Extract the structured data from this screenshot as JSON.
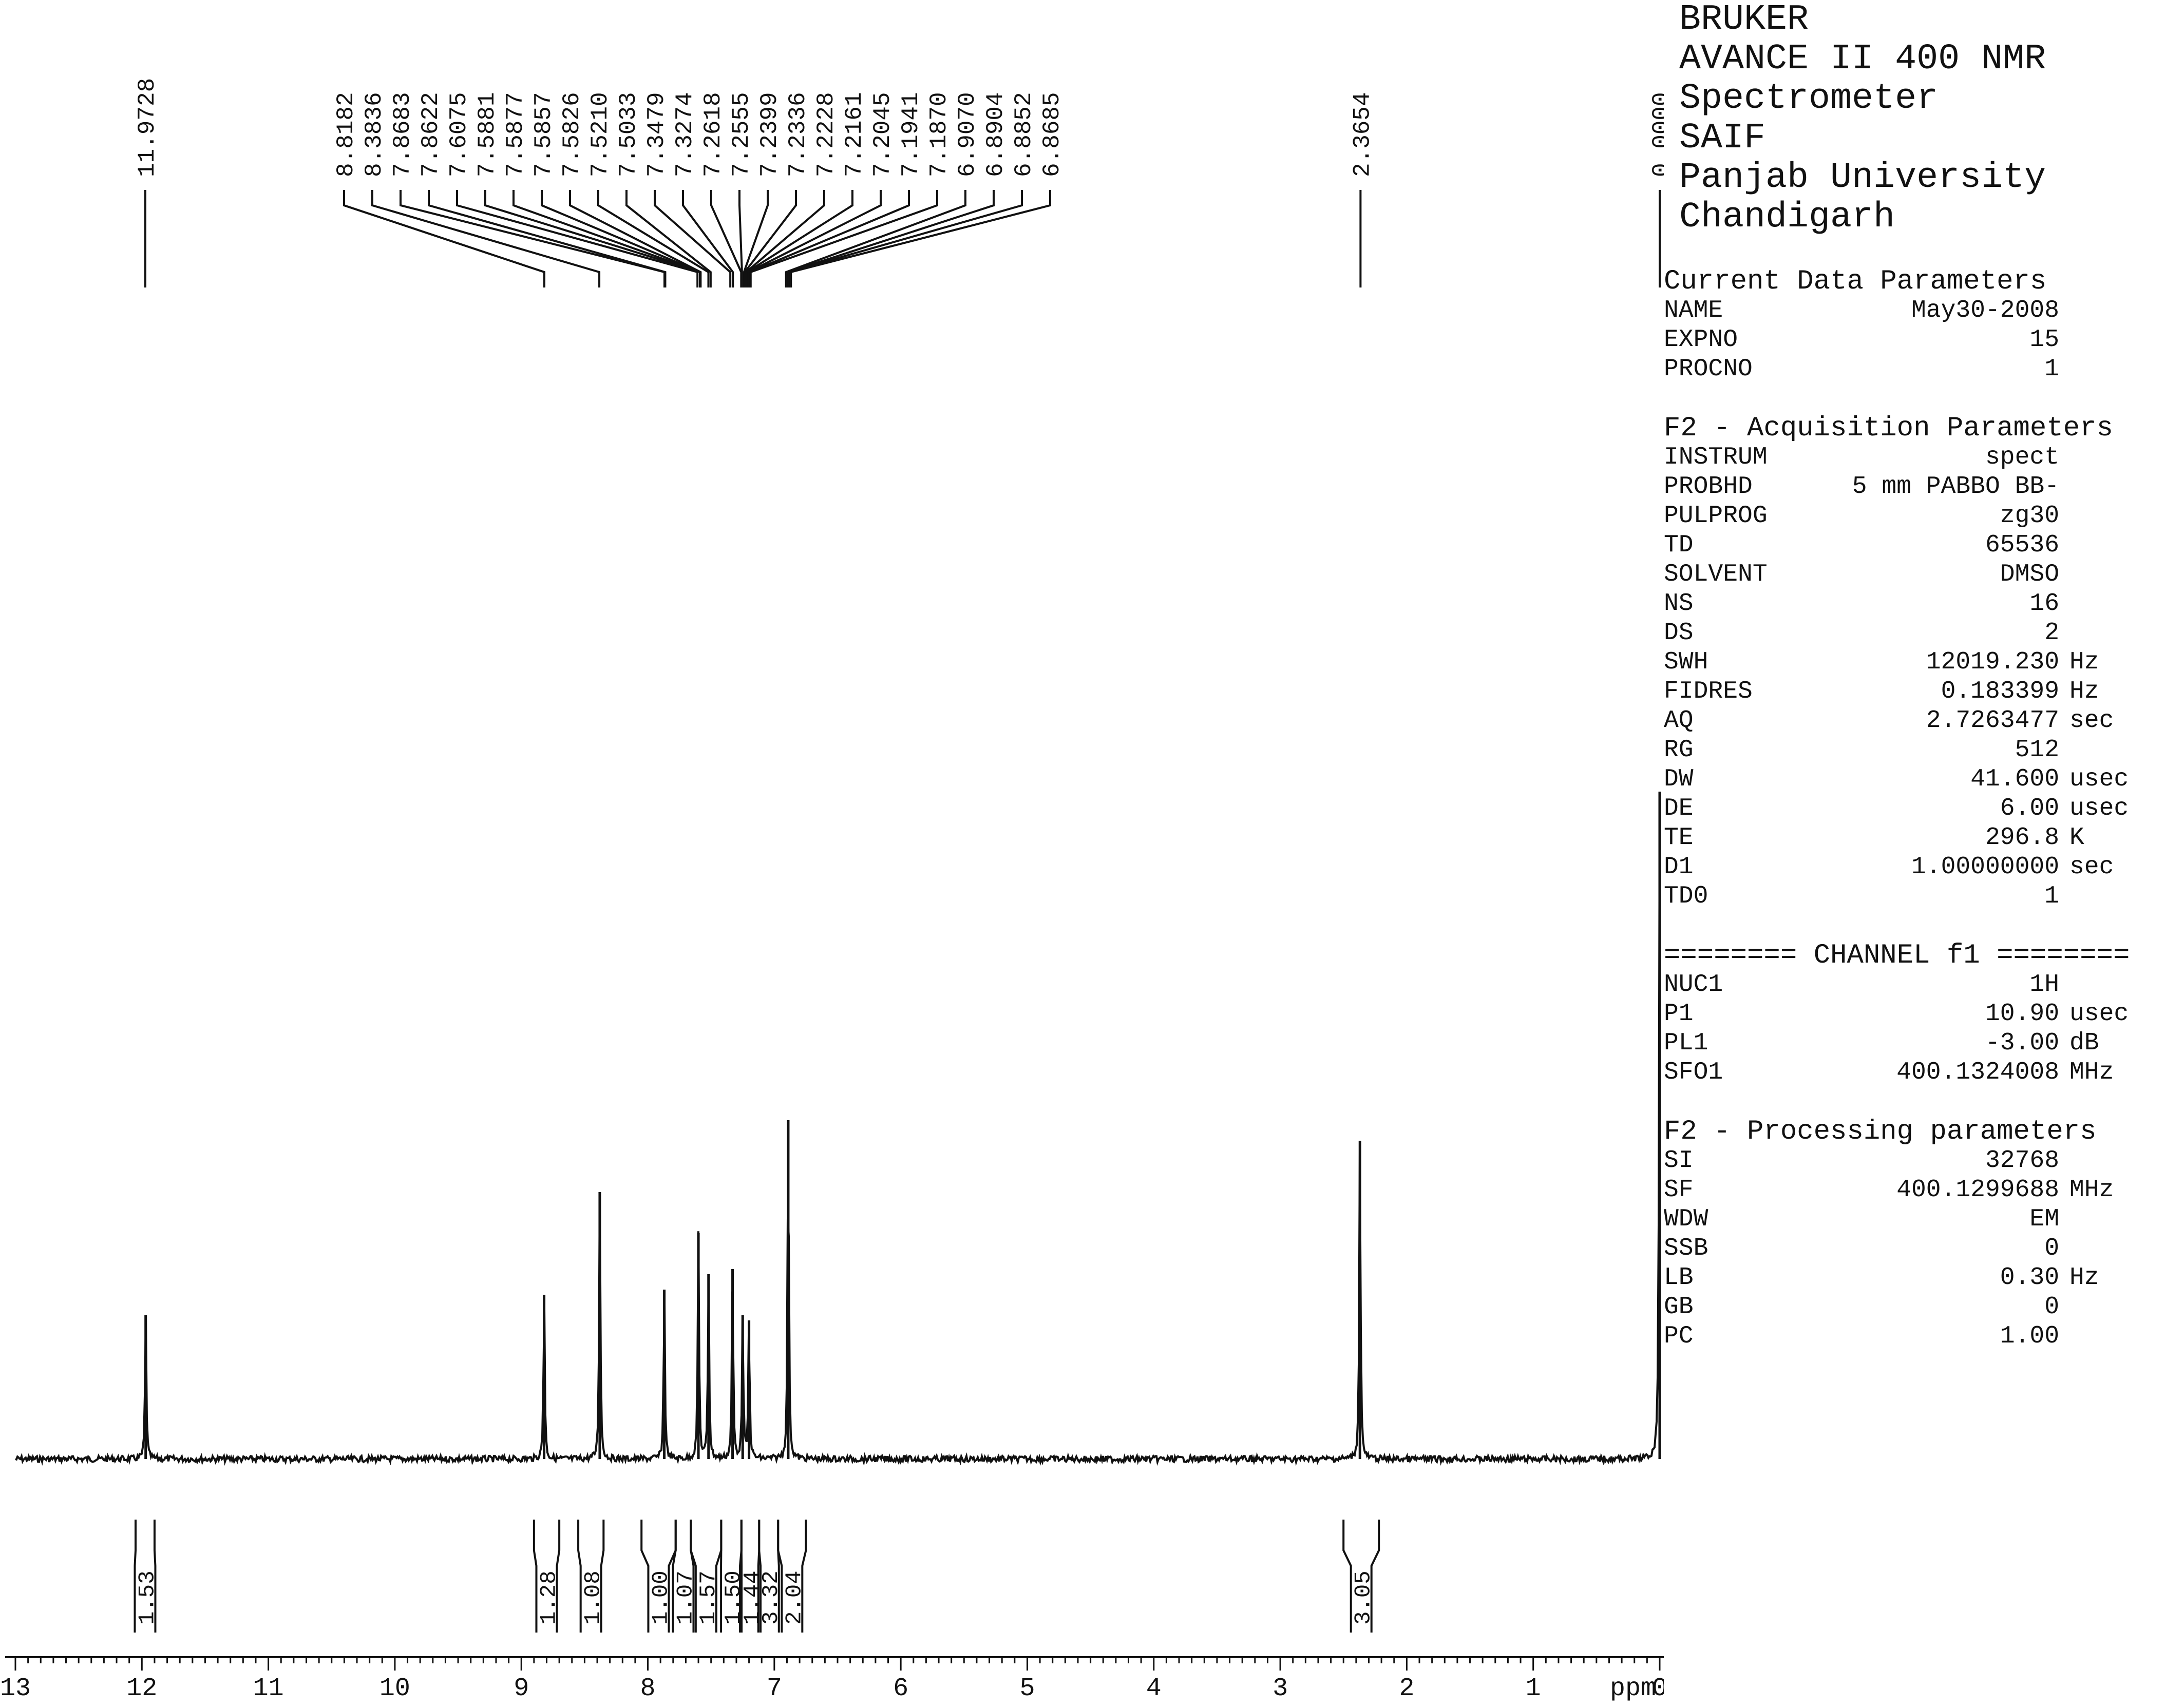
{
  "chart_data": {
    "type": "line",
    "title": "",
    "xlabel": "ppm",
    "ylabel": "",
    "xlim": [
      13,
      0
    ],
    "x_ticks": [
      "13",
      "12",
      "11",
      "10",
      "9",
      "8",
      "7",
      "6",
      "5",
      "4",
      "3",
      "2",
      "1",
      "0"
    ],
    "peak_labels": [
      "11.9728",
      "8.8182",
      "8.3836",
      "7.8683",
      "7.8622",
      "7.6075",
      "7.5881",
      "7.5877",
      "7.5857",
      "7.5826",
      "7.5210",
      "7.5033",
      "7.3479",
      "7.3274",
      "7.2618",
      "7.2555",
      "7.2399",
      "7.2336",
      "7.2228",
      "7.2161",
      "7.2045",
      "7.1941",
      "7.1870",
      "6.9070",
      "6.8904",
      "6.8852",
      "6.8685",
      "2.3654",
      "0.0000"
    ],
    "peaks": [
      {
        "ppm": 11.97,
        "height": 0.28
      },
      {
        "ppm": 8.82,
        "height": 0.32
      },
      {
        "ppm": 8.38,
        "height": 0.52
      },
      {
        "ppm": 7.87,
        "height": 0.33
      },
      {
        "ppm": 7.6,
        "height": 0.44
      },
      {
        "ppm": 7.52,
        "height": 0.36
      },
      {
        "ppm": 7.33,
        "height": 0.37
      },
      {
        "ppm": 7.25,
        "height": 0.28
      },
      {
        "ppm": 7.2,
        "height": 0.27
      },
      {
        "ppm": 6.89,
        "height": 0.66
      },
      {
        "ppm": 2.37,
        "height": 0.62
      },
      {
        "ppm": 0.0,
        "height": 1.3
      }
    ],
    "integrals": [
      {
        "from": 12.05,
        "to": 11.9,
        "value": "1.53"
      },
      {
        "from": 8.9,
        "to": 8.7,
        "value": "1.28"
      },
      {
        "from": 8.55,
        "to": 8.35,
        "value": "1.08"
      },
      {
        "from": 8.05,
        "to": 7.78,
        "value": "1.00"
      },
      {
        "from": 7.78,
        "to": 7.66,
        "value": "1.07"
      },
      {
        "from": 7.66,
        "to": 7.42,
        "value": "1.57"
      },
      {
        "from": 7.42,
        "to": 7.26,
        "value": "1.50"
      },
      {
        "from": 7.26,
        "to": 7.12,
        "value": "1.44"
      },
      {
        "from": 7.12,
        "to": 6.97,
        "value": "3.32"
      },
      {
        "from": 6.97,
        "to": 6.75,
        "value": "2.04"
      },
      {
        "from": 2.5,
        "to": 2.22,
        "value": "3.05"
      }
    ]
  },
  "header": {
    "lines": [
      "BRUKER",
      "AVANCE II 400 NMR",
      "Spectrometer",
      "SAIF",
      "Panjab University",
      "Chandigarh"
    ]
  },
  "current": {
    "title": "Current Data Parameters",
    "rows": [
      {
        "k": "NAME",
        "v": "May30-2008",
        "u": ""
      },
      {
        "k": "EXPNO",
        "v": "15",
        "u": ""
      },
      {
        "k": "PROCNO",
        "v": "1",
        "u": ""
      }
    ]
  },
  "acq": {
    "title": "F2 - Acquisition Parameters",
    "rows": [
      {
        "k": "INSTRUM",
        "v": "spect",
        "u": ""
      },
      {
        "k": "PROBHD",
        "v": "5 mm PABBO BB-",
        "u": ""
      },
      {
        "k": "PULPROG",
        "v": "zg30",
        "u": ""
      },
      {
        "k": "TD",
        "v": "65536",
        "u": ""
      },
      {
        "k": "SOLVENT",
        "v": "DMSO",
        "u": ""
      },
      {
        "k": "NS",
        "v": "16",
        "u": ""
      },
      {
        "k": "DS",
        "v": "2",
        "u": ""
      },
      {
        "k": "SWH",
        "v": "12019.230",
        "u": "Hz"
      },
      {
        "k": "FIDRES",
        "v": "0.183399",
        "u": "Hz"
      },
      {
        "k": "AQ",
        "v": "2.7263477",
        "u": "sec"
      },
      {
        "k": "RG",
        "v": "512",
        "u": ""
      },
      {
        "k": "DW",
        "v": "41.600",
        "u": "usec"
      },
      {
        "k": "DE",
        "v": "6.00",
        "u": "usec"
      },
      {
        "k": "TE",
        "v": "296.8",
        "u": "K"
      },
      {
        "k": "D1",
        "v": "1.00000000",
        "u": "sec"
      },
      {
        "k": "TD0",
        "v": "1",
        "u": ""
      }
    ]
  },
  "channel": {
    "title": "======== CHANNEL f1 ========",
    "rows": [
      {
        "k": "NUC1",
        "v": "1H",
        "u": ""
      },
      {
        "k": "P1",
        "v": "10.90",
        "u": "usec"
      },
      {
        "k": "PL1",
        "v": "-3.00",
        "u": "dB"
      },
      {
        "k": "SFO1",
        "v": "400.1324008",
        "u": "MHz"
      }
    ]
  },
  "proc": {
    "title": "F2 - Processing parameters",
    "rows": [
      {
        "k": "SI",
        "v": "32768",
        "u": ""
      },
      {
        "k": "SF",
        "v": "400.1299688",
        "u": "MHz"
      },
      {
        "k": "WDW",
        "v": "EM",
        "u": ""
      },
      {
        "k": "SSB",
        "v": "0",
        "u": ""
      },
      {
        "k": "LB",
        "v": "0.30",
        "u": "Hz"
      },
      {
        "k": "GB",
        "v": "0",
        "u": ""
      },
      {
        "k": "PC",
        "v": "1.00",
        "u": ""
      }
    ]
  }
}
